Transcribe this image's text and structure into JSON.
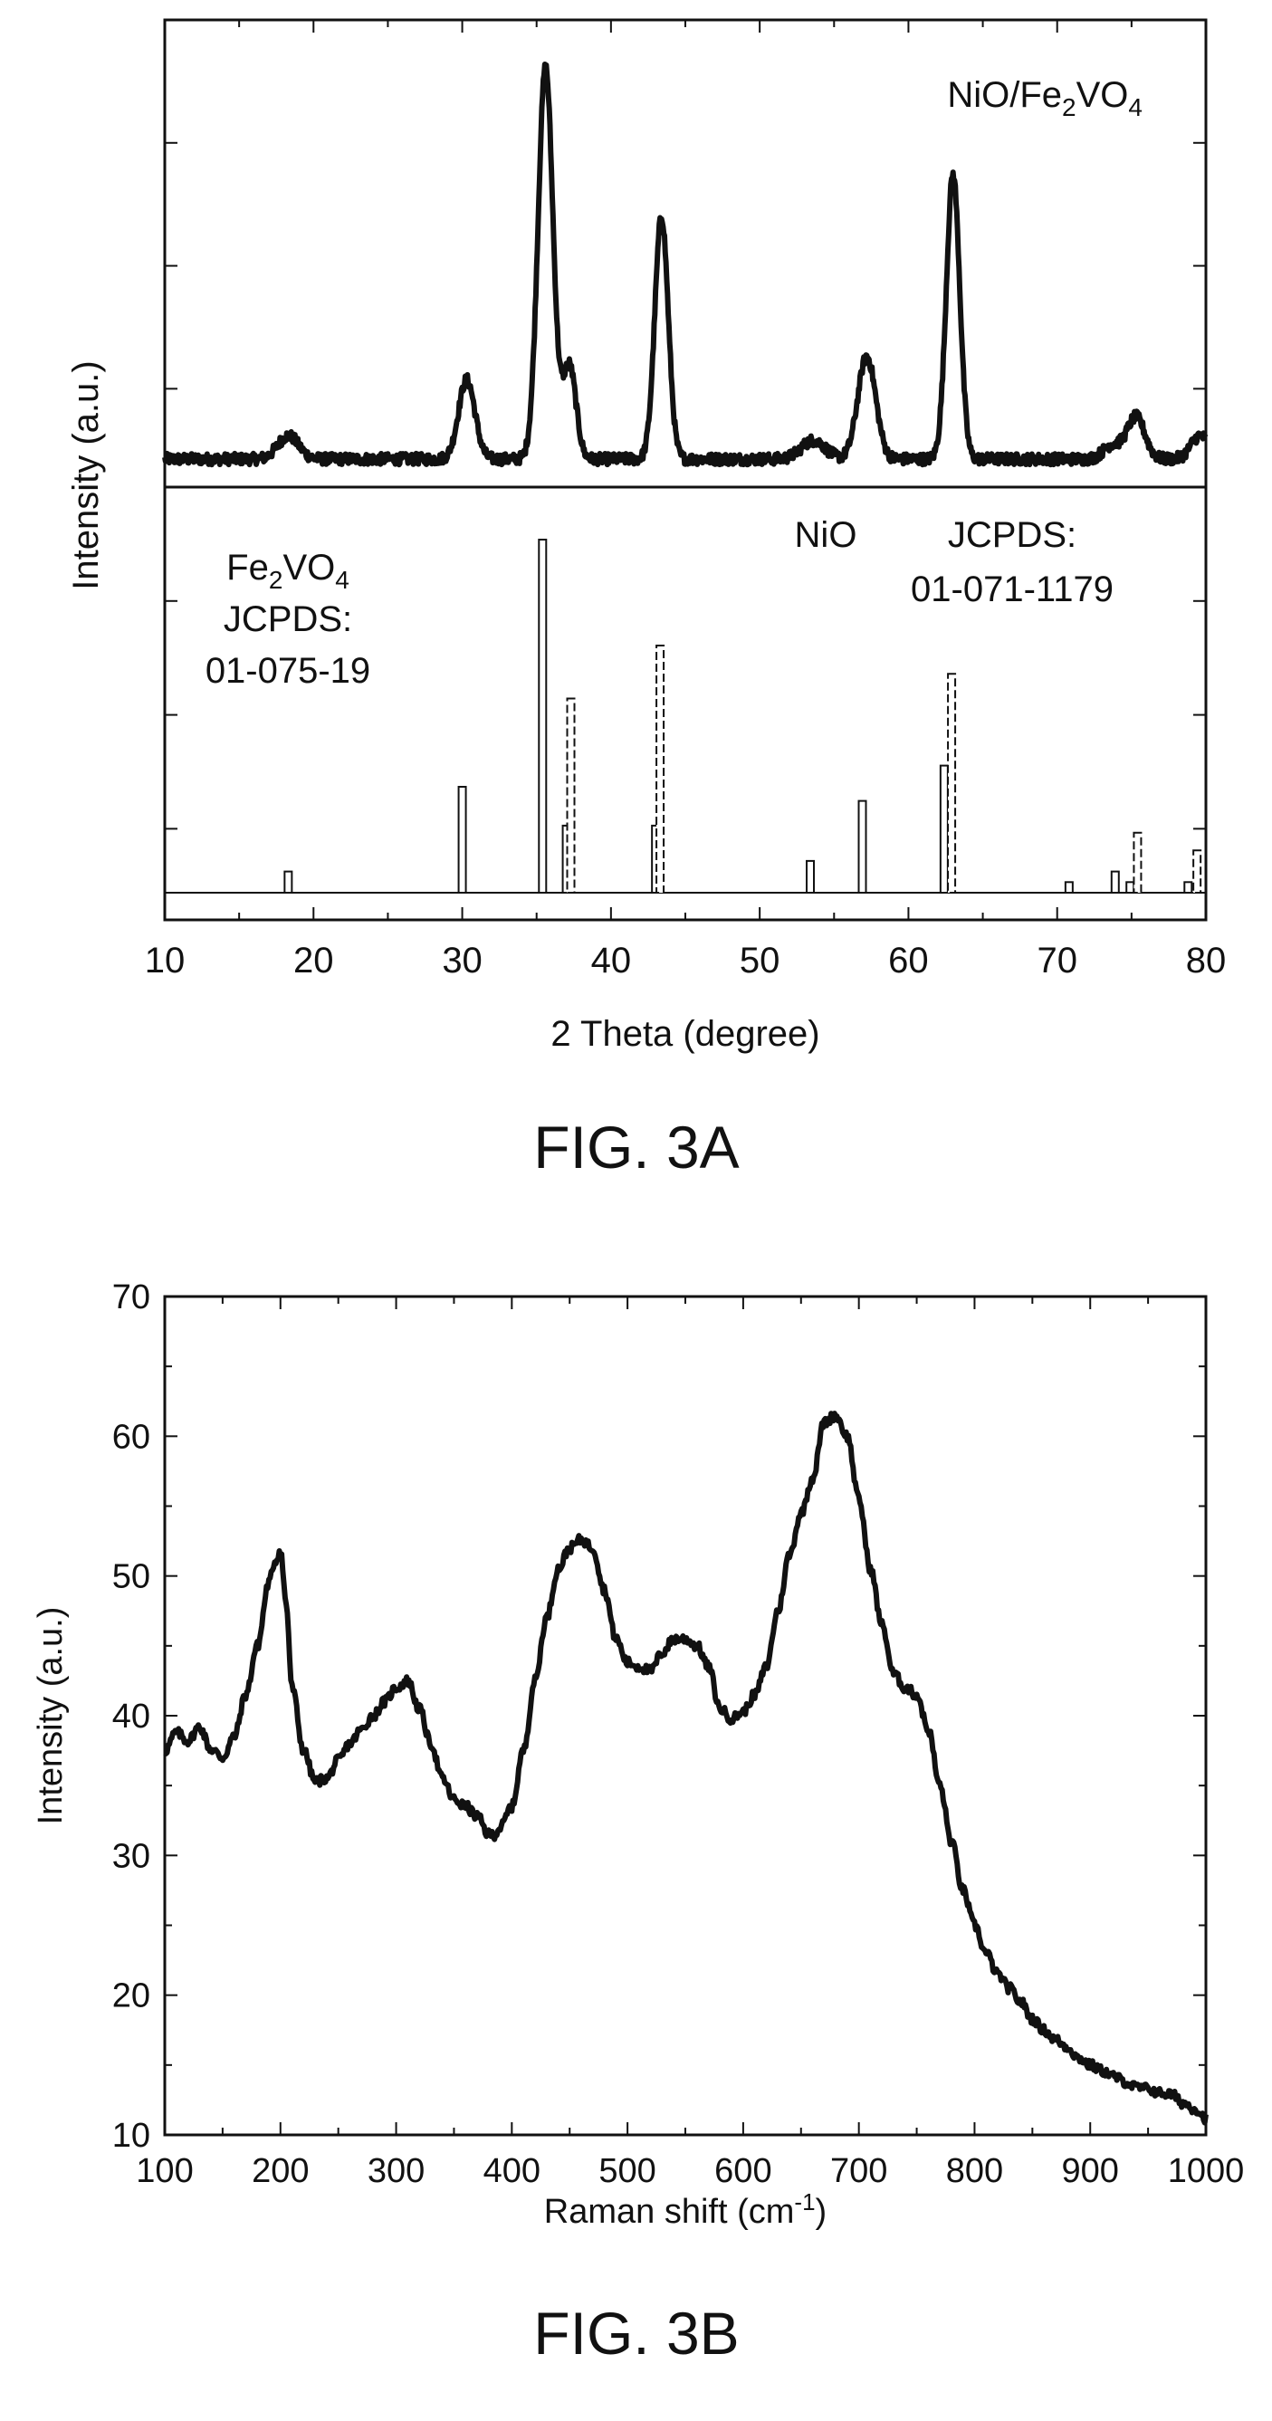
{
  "chart_data": [
    {
      "type": "line",
      "figure_label": "FIG. 3A",
      "xlabel": "2 Theta (degree)",
      "ylabel": "Intensity (a.u.)",
      "xlim": [
        10,
        80
      ],
      "xticks": [
        "10",
        "20",
        "30",
        "40",
        "50",
        "60",
        "70",
        "80"
      ],
      "upper_panel": {
        "label": "NiO/Fe2VO4",
        "label_main": "NiO/Fe",
        "label_sub1": "2",
        "label_mid": "VO",
        "label_sub2": "4",
        "ylim": [
          0,
          1
        ],
        "baseline": 0.06,
        "noise": 0.012,
        "peaks": [
          {
            "x": 18.3,
            "height": 0.05,
            "width": 0.7
          },
          {
            "x": 30.3,
            "height": 0.17,
            "width": 0.55
          },
          {
            "x": 35.6,
            "height": 0.84,
            "width": 0.5
          },
          {
            "x": 37.2,
            "height": 0.2,
            "width": 0.45
          },
          {
            "x": 43.4,
            "height": 0.52,
            "width": 0.45
          },
          {
            "x": 53.6,
            "height": 0.04,
            "width": 0.8
          },
          {
            "x": 57.2,
            "height": 0.22,
            "width": 0.6
          },
          {
            "x": 63.0,
            "height": 0.61,
            "width": 0.45
          },
          {
            "x": 73.7,
            "height": 0.03,
            "width": 0.6
          },
          {
            "x": 75.3,
            "height": 0.09,
            "width": 0.6
          },
          {
            "x": 79.6,
            "height": 0.05,
            "width": 0.6
          }
        ]
      },
      "lower_panel": {
        "ylim": [
          0,
          1
        ],
        "series": [
          {
            "name": "Fe2VO4",
            "reference": "JCPDS: 01-075-19",
            "style": "solid",
            "bars": [
              {
                "x": 18.3,
                "value": 0.06
              },
              {
                "x": 30.0,
                "value": 0.3
              },
              {
                "x": 35.4,
                "value": 1.0
              },
              {
                "x": 37.0,
                "value": 0.19
              },
              {
                "x": 43.0,
                "value": 0.19
              },
              {
                "x": 53.4,
                "value": 0.09
              },
              {
                "x": 56.9,
                "value": 0.26
              },
              {
                "x": 62.4,
                "value": 0.36
              },
              {
                "x": 70.8,
                "value": 0.03
              },
              {
                "x": 73.9,
                "value": 0.06
              },
              {
                "x": 74.9,
                "value": 0.03
              },
              {
                "x": 78.8,
                "value": 0.03
              }
            ]
          },
          {
            "name": "NiO",
            "reference": "JCPDS: 01-071-1179",
            "style": "dashed",
            "bars": [
              {
                "x": 37.3,
                "value": 0.55
              },
              {
                "x": 43.3,
                "value": 0.7
              },
              {
                "x": 62.9,
                "value": 0.62
              },
              {
                "x": 75.4,
                "value": 0.17
              },
              {
                "x": 79.4,
                "value": 0.12
              }
            ]
          }
        ],
        "labels": {
          "fe_main": "Fe",
          "fe_sub1": "2",
          "fe_mid": "VO",
          "fe_sub2": "4",
          "fe_jcpds": "JCPDS:",
          "fe_code": "01-075-19",
          "nio": "NiO",
          "nio_jcpds": "JCPDS:",
          "nio_code": "01-071-1179"
        }
      }
    },
    {
      "type": "line",
      "figure_label": "FIG. 3B",
      "xlabel_main": "Raman shift (cm",
      "xlabel_sup": "-1",
      "xlabel_end": ")",
      "ylabel": "Intensity (a.u.)",
      "xlim": [
        100,
        1000
      ],
      "ylim": [
        10,
        70
      ],
      "xticks": [
        "100",
        "200",
        "300",
        "400",
        "500",
        "600",
        "700",
        "800",
        "900",
        "1000"
      ],
      "yticks": [
        "10",
        "20",
        "30",
        "40",
        "50",
        "60",
        "70"
      ],
      "noise": 0.35,
      "series": [
        {
          "name": "",
          "x": [
            100,
            110,
            120,
            130,
            140,
            150,
            160,
            170,
            180,
            190,
            195,
            200,
            205,
            210,
            220,
            230,
            240,
            250,
            260,
            270,
            280,
            290,
            300,
            310,
            320,
            330,
            340,
            350,
            360,
            370,
            380,
            385,
            390,
            400,
            410,
            420,
            430,
            440,
            450,
            460,
            470,
            480,
            490,
            500,
            510,
            520,
            530,
            540,
            550,
            560,
            570,
            580,
            590,
            600,
            610,
            620,
            630,
            640,
            650,
            660,
            670,
            680,
            690,
            700,
            710,
            720,
            730,
            740,
            750,
            760,
            770,
            780,
            790,
            800,
            810,
            820,
            830,
            840,
            850,
            860,
            870,
            880,
            890,
            900,
            910,
            920,
            930,
            940,
            950,
            960,
            970,
            980,
            990,
            1000
          ],
          "y": [
            37.5,
            38.8,
            38.2,
            39.2,
            37.6,
            37.0,
            38.5,
            41.5,
            45.0,
            49.5,
            51.0,
            51.8,
            48.0,
            42.0,
            37.5,
            35.3,
            35.5,
            36.8,
            38.0,
            39.0,
            40.0,
            41.0,
            42.0,
            42.5,
            40.5,
            38.0,
            35.5,
            34.0,
            33.5,
            32.8,
            31.5,
            31.5,
            32.0,
            33.5,
            37.5,
            42.5,
            47.0,
            50.5,
            52.0,
            52.6,
            52.0,
            49.0,
            45.5,
            43.8,
            43.5,
            43.2,
            44.5,
            45.5,
            45.5,
            45.0,
            43.5,
            40.5,
            39.8,
            40.3,
            41.5,
            43.5,
            47.5,
            51.5,
            54.5,
            57.0,
            61.0,
            61.5,
            60.0,
            55.5,
            50.5,
            46.5,
            43.0,
            42.0,
            41.5,
            39.0,
            35.0,
            31.0,
            27.5,
            25.0,
            23.0,
            21.5,
            20.5,
            19.5,
            18.3,
            17.5,
            16.8,
            16.3,
            15.5,
            15.0,
            14.6,
            14.2,
            13.8,
            13.4,
            13.3,
            13.0,
            12.9,
            12.3,
            11.9,
            11.2
          ]
        }
      ]
    }
  ]
}
